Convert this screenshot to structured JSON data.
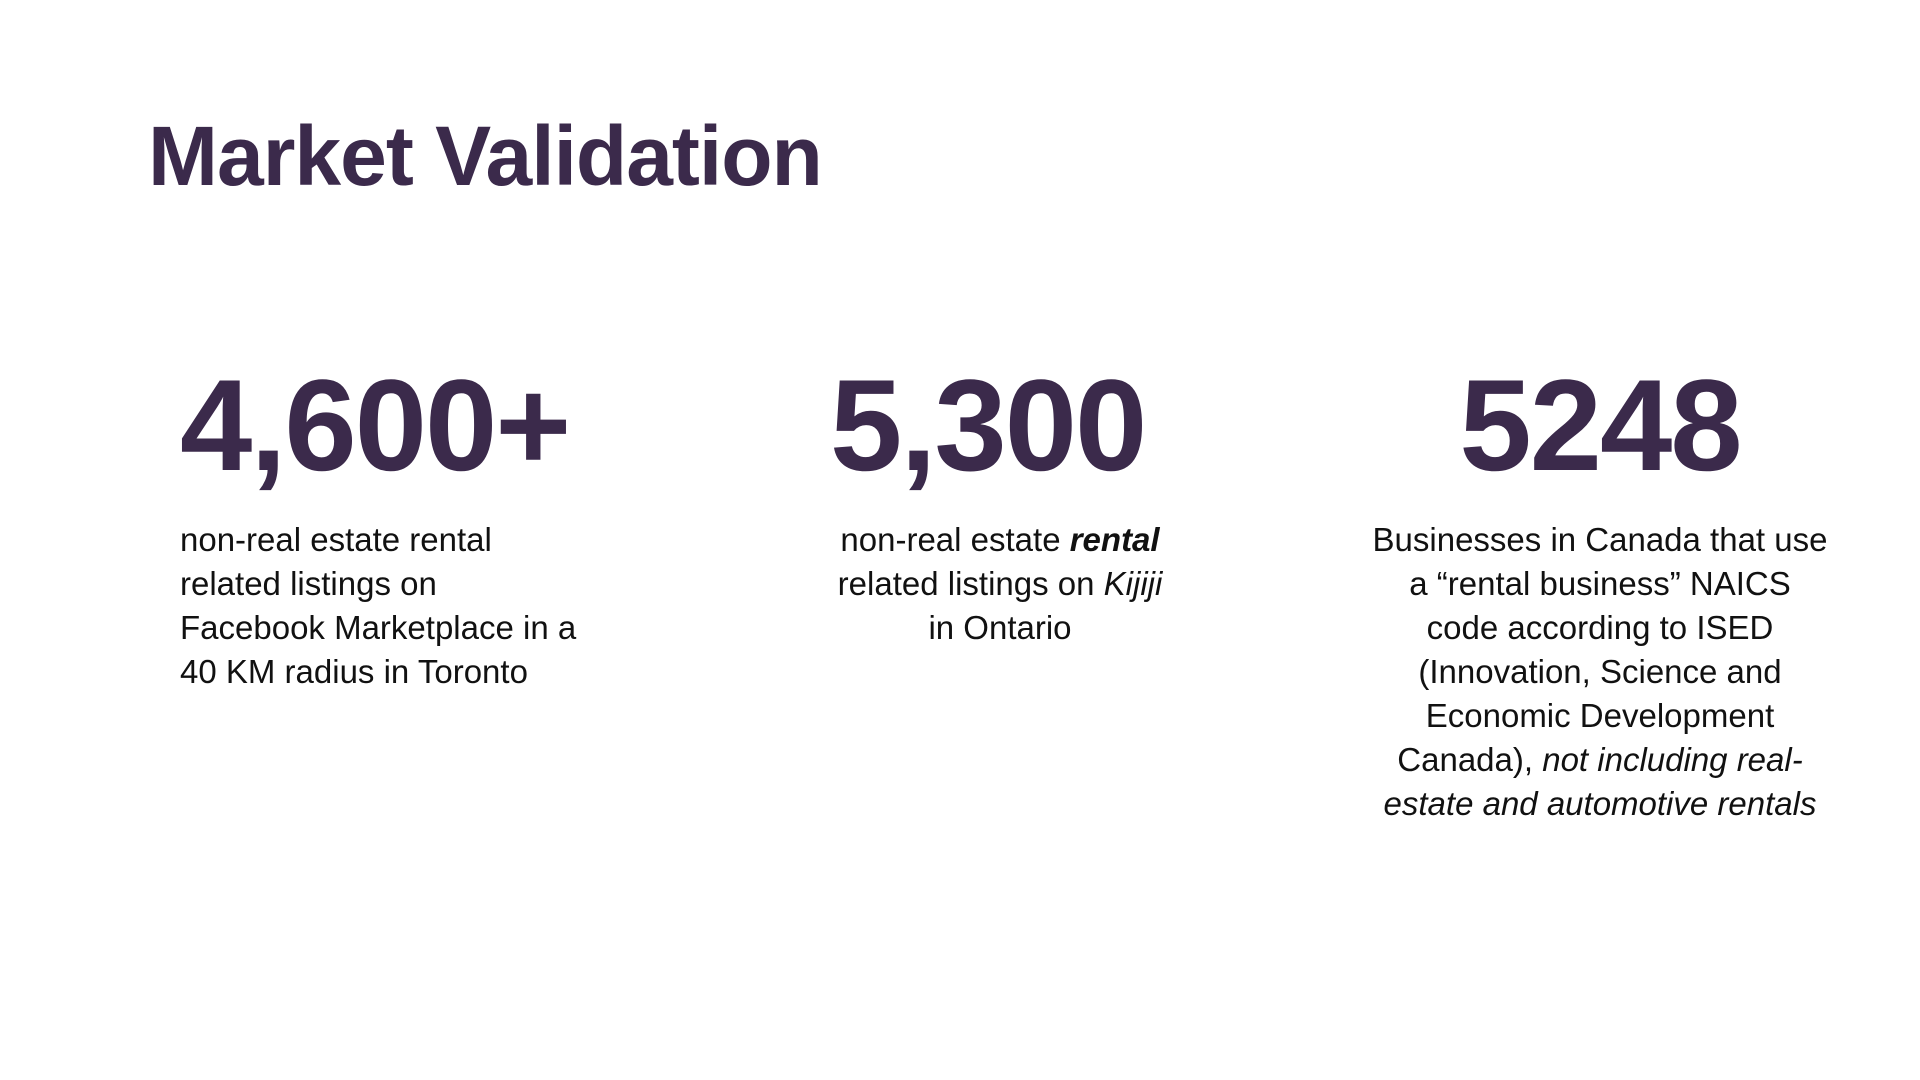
{
  "slide": {
    "title": "Market Validation"
  },
  "stats": [
    {
      "number": "4,600+",
      "line1": "non-real estate rental",
      "line2": "related listings on",
      "line3": "Facebook Marketplace in a",
      "line4": "40 KM radius in Toronto"
    },
    {
      "number": "5,300",
      "prefix": "non-real estate ",
      "emphasis": "rental",
      "mid": "related listings on ",
      "platform": "Kijiji",
      "suffix": "in Ontario"
    },
    {
      "number": "5248",
      "main": "Businesses in Canada that use a “rental business” NAICS code according to ISED (Innovation, Science and Economic Development Canada), ",
      "italic": "not including real-estate and automotive rentals"
    }
  ],
  "colors": {
    "heading": "#3b2a4b",
    "body_text": "#111111",
    "background": "#ffffff"
  }
}
